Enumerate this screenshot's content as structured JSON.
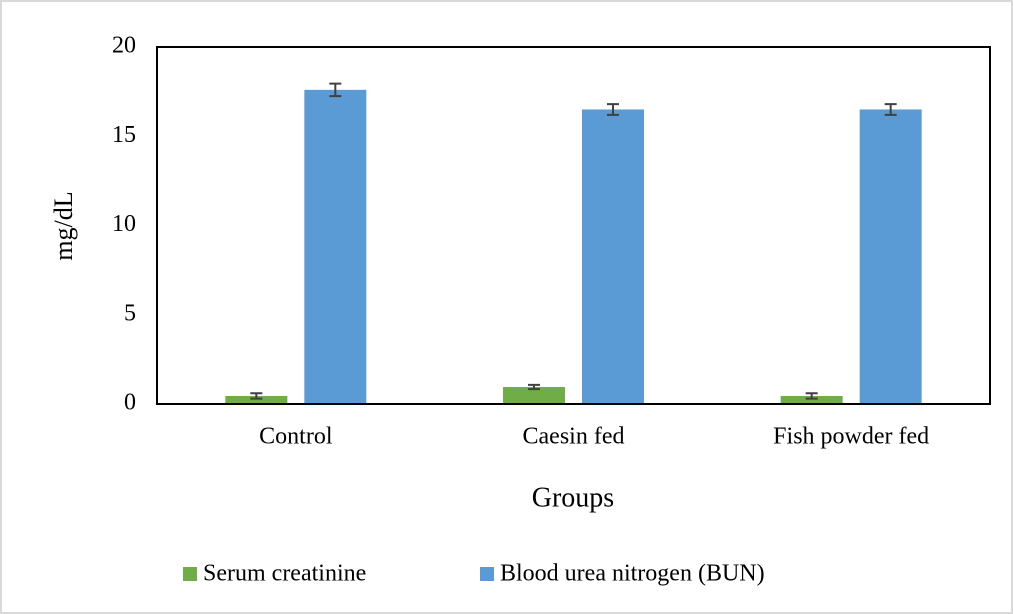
{
  "chart_data": {
    "type": "bar",
    "x_label": "Groups",
    "y_label": "mg/dL",
    "categories": [
      "Control",
      "Caesin fed",
      "Fish powder fed"
    ],
    "series": [
      {
        "name": "Serum creatinine",
        "color": "#70ad47",
        "values": [
          0.45,
          0.95,
          0.45
        ],
        "errors": [
          0.15,
          0.12,
          0.15
        ]
      },
      {
        "name": "Blood urea nitrogen (BUN)",
        "color": "#5b9bd5",
        "values": [
          17.6,
          16.5,
          16.5
        ],
        "errors": [
          0.35,
          0.3,
          0.3
        ]
      }
    ],
    "ylim": [
      0,
      20
    ],
    "yticks": [
      0,
      5,
      10,
      15,
      20
    ],
    "grid": false
  }
}
